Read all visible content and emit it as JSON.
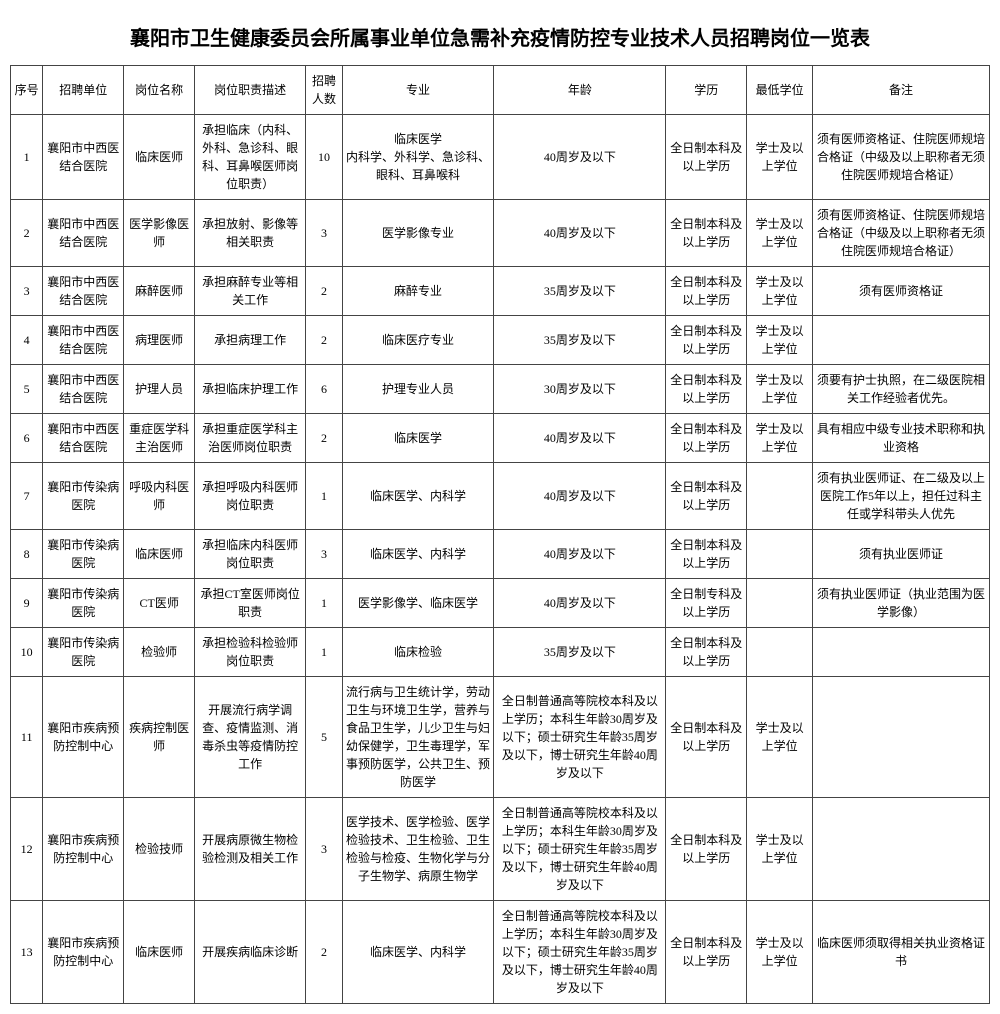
{
  "title": "襄阳市卫生健康委员会所属事业单位急需补充疫情防控专业技术人员招聘岗位一览表",
  "columns": {
    "seq": "序号",
    "unit": "招聘单位",
    "position": "岗位名称",
    "desc": "岗位职责描述",
    "num": "招聘人数",
    "major": "专业",
    "age": "年龄",
    "edu": "学历",
    "degree": "最低学位",
    "note": "备注"
  },
  "rows": [
    {
      "seq": "1",
      "unit": "襄阳市中西医结合医院",
      "position": "临床医师",
      "desc": "承担临床（内科、外科、急诊科、眼科、耳鼻喉医师岗位职责）",
      "num": "10",
      "major": "临床医学\n内科学、外科学、急诊科、眼科、耳鼻喉科",
      "age": "40周岁及以下",
      "edu": "全日制本科及以上学历",
      "degree": "学士及以上学位",
      "note": "须有医师资格证、住院医师规培合格证（中级及以上职称者无须住院医师规培合格证）"
    },
    {
      "seq": "2",
      "unit": "襄阳市中西医结合医院",
      "position": "医学影像医师",
      "desc": "承担放射、影像等相关职责",
      "num": "3",
      "major": "医学影像专业",
      "age": "40周岁及以下",
      "edu": "全日制本科及以上学历",
      "degree": "学士及以上学位",
      "note": "须有医师资格证、住院医师规培合格证（中级及以上职称者无须住院医师规培合格证）"
    },
    {
      "seq": "3",
      "unit": "襄阳市中西医结合医院",
      "position": "麻醉医师",
      "desc": "承担麻醉专业等相关工作",
      "num": "2",
      "major": "麻醉专业",
      "age": "35周岁及以下",
      "edu": "全日制本科及以上学历",
      "degree": "学士及以上学位",
      "note": "须有医师资格证"
    },
    {
      "seq": "4",
      "unit": "襄阳市中西医结合医院",
      "position": "病理医师",
      "desc": "承担病理工作",
      "num": "2",
      "major": "临床医疗专业",
      "age": "35周岁及以下",
      "edu": "全日制本科及以上学历",
      "degree": "学士及以上学位",
      "note": ""
    },
    {
      "seq": "5",
      "unit": "襄阳市中西医结合医院",
      "position": "护理人员",
      "desc": "承担临床护理工作",
      "num": "6",
      "major": "护理专业人员",
      "age": "30周岁及以下",
      "edu": "全日制本科及以上学历",
      "degree": "学士及以上学位",
      "note": "须要有护士执照，在二级医院相关工作经验者优先。"
    },
    {
      "seq": "6",
      "unit": "襄阳市中西医结合医院",
      "position": "重症医学科主治医师",
      "desc": "承担重症医学科主治医师岗位职责",
      "num": "2",
      "major": "临床医学",
      "age": "40周岁及以下",
      "edu": "全日制本科及以上学历",
      "degree": "学士及以上学位",
      "note": "具有相应中级专业技术职称和执业资格"
    },
    {
      "seq": "7",
      "unit": "襄阳市传染病医院",
      "position": "呼吸内科医师",
      "desc": "承担呼吸内科医师岗位职责",
      "num": "1",
      "major": "临床医学、内科学",
      "age": "40周岁及以下",
      "edu": "全日制本科及以上学历",
      "degree": "",
      "note": "须有执业医师证、在二级及以上医院工作5年以上，担任过科主任或学科带头人优先"
    },
    {
      "seq": "8",
      "unit": "襄阳市传染病医院",
      "position": "临床医师",
      "desc": "承担临床内科医师岗位职责",
      "num": "3",
      "major": "临床医学、内科学",
      "age": "40周岁及以下",
      "edu": "全日制本科及以上学历",
      "degree": "",
      "note": "须有执业医师证"
    },
    {
      "seq": "9",
      "unit": "襄阳市传染病医院",
      "position": "CT医师",
      "desc": "承担CT室医师岗位职责",
      "num": "1",
      "major": "医学影像学、临床医学",
      "age": "40周岁及以下",
      "edu": "全日制专科及以上学历",
      "degree": "",
      "note": "须有执业医师证（执业范围为医学影像）"
    },
    {
      "seq": "10",
      "unit": "襄阳市传染病医院",
      "position": "检验师",
      "desc": "承担检验科检验师岗位职责",
      "num": "1",
      "major": "临床检验",
      "age": "35周岁及以下",
      "edu": "全日制本科及以上学历",
      "degree": "",
      "note": ""
    },
    {
      "seq": "11",
      "unit": "襄阳市疾病预防控制中心",
      "position": "疾病控制医师",
      "desc": "开展流行病学调查、疫情监测、消毒杀虫等疫情防控工作",
      "num": "5",
      "major": "流行病与卫生统计学，劳动卫生与环境卫生学，营养与食品卫生学，儿少卫生与妇幼保健学，卫生毒理学，军事预防医学，公共卫生、预防医学",
      "age": "全日制普通高等院校本科及以上学历；本科生年龄30周岁及以下；硕士研究生年龄35周岁及以下，博士研究生年龄40周岁及以下",
      "edu": "全日制本科及以上学历",
      "degree": "学士及以上学位",
      "note": ""
    },
    {
      "seq": "12",
      "unit": "襄阳市疾病预防控制中心",
      "position": "检验技师",
      "desc": "开展病原微生物检验检测及相关工作",
      "num": "3",
      "major": "医学技术、医学检验、医学检验技术、卫生检验、卫生检验与检疫、生物化学与分子生物学、病原生物学",
      "age": "全日制普通高等院校本科及以上学历；本科生年龄30周岁及以下；硕士研究生年龄35周岁及以下，博士研究生年龄40周岁及以下",
      "edu": "全日制本科及以上学历",
      "degree": "学士及以上学位",
      "note": ""
    },
    {
      "seq": "13",
      "unit": "襄阳市疾病预防控制中心",
      "position": "临床医师",
      "desc": "开展疾病临床诊断",
      "num": "2",
      "major": "临床医学、内科学",
      "age": "全日制普通高等院校本科及以上学历；本科生年龄30周岁及以下；硕士研究生年龄35周岁及以下，博士研究生年龄40周岁及以下",
      "edu": "全日制本科及以上学历",
      "degree": "学士及以上学位",
      "note": "临床医师须取得相关执业资格证书"
    }
  ]
}
